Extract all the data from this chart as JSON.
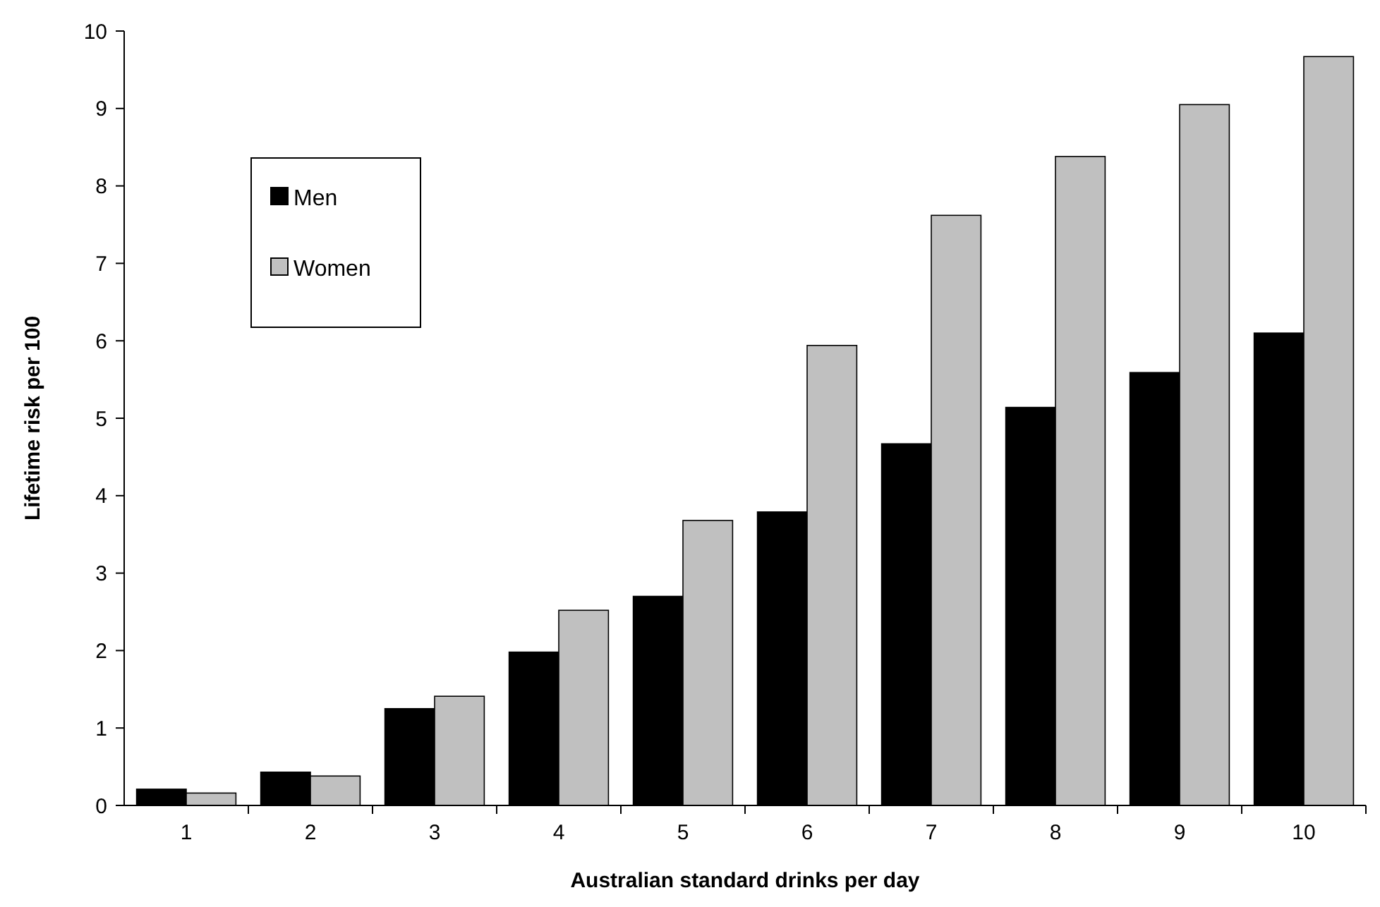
{
  "chart_data": {
    "type": "bar",
    "xlabel": "Australian standard drinks per day",
    "ylabel": "Lifetime risk per 100",
    "categories": [
      "1",
      "2",
      "3",
      "4",
      "5",
      "6",
      "7",
      "8",
      "9",
      "10"
    ],
    "series": [
      {
        "name": "Men",
        "color": "#000000",
        "values": [
          0.21,
          0.43,
          1.25,
          1.98,
          2.7,
          3.79,
          4.67,
          5.14,
          5.59,
          6.1
        ]
      },
      {
        "name": "Women",
        "color": "#c0c0c0",
        "values": [
          0.16,
          0.38,
          1.41,
          2.52,
          3.68,
          5.94,
          7.62,
          8.38,
          9.05,
          9.67
        ]
      }
    ],
    "ylim": [
      0,
      10
    ],
    "yticks": [
      0,
      1,
      2,
      3,
      4,
      5,
      6,
      7,
      8,
      9,
      10
    ],
    "grid": false,
    "legend": "top left"
  }
}
